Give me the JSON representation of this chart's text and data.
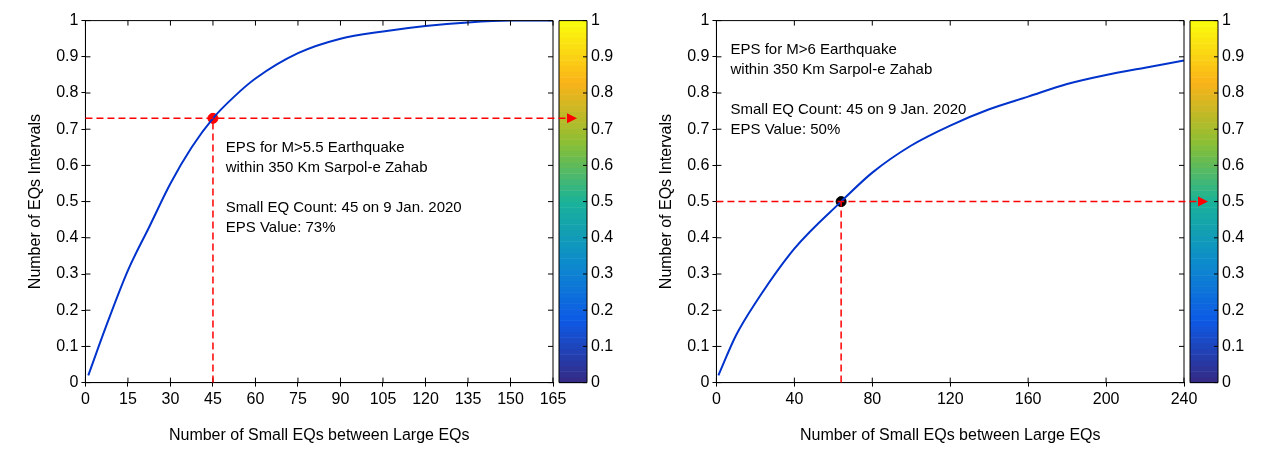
{
  "chart_data": [
    {
      "type": "line",
      "xlabel": "Number of Small EQs between Large EQs",
      "ylabel": "Number of EQs Intervals",
      "xlim": [
        0,
        165
      ],
      "xticks": [
        0,
        15,
        30,
        45,
        60,
        75,
        90,
        105,
        120,
        135,
        150,
        165
      ],
      "ylim": [
        0,
        1
      ],
      "yticks": [
        0,
        0.1,
        0.2,
        0.3,
        0.4,
        0.5,
        0.6,
        0.7,
        0.8,
        0.9,
        1
      ],
      "grid": false,
      "legend": false,
      "clim": [
        0,
        1
      ],
      "cticks": [
        0,
        0.1,
        0.2,
        0.3,
        0.4,
        0.5,
        0.6,
        0.7,
        0.8,
        0.9,
        1
      ],
      "series": [
        {
          "color": "#0033cc",
          "marker": "none",
          "x": [
            1,
            7.5,
            15,
            22.5,
            30,
            37.5,
            45,
            52.5,
            60,
            75,
            90,
            105,
            120,
            135,
            150,
            165
          ],
          "values": [
            0.02,
            0.16,
            0.31,
            0.43,
            0.55,
            0.65,
            0.73,
            0.79,
            0.84,
            0.91,
            0.95,
            0.97,
            0.985,
            0.995,
            1,
            1
          ]
        },
        {
          "type": "scatter",
          "color": "#ff0000",
          "marker": "circle",
          "x": [
            45
          ],
          "values": [
            0.73
          ]
        }
      ],
      "ref_lines": [
        {
          "axis": "y",
          "value": 0.73,
          "color": "#ff0000",
          "line_style": "dashed"
        },
        {
          "axis": "x",
          "value": 45,
          "color": "#ff0000",
          "line_style": "dashed"
        }
      ],
      "annotations": [
        "EPS for M>5.5 Earthquake",
        "within 350 Km Sarpol-e Zahab",
        "Small EQ Count: 45 on 9 Jan. 2020",
        "EPS Value: 73%"
      ]
    },
    {
      "type": "line",
      "xlabel": "Number of Small EQs between Large EQs",
      "ylabel": "Number of EQs Intervals",
      "xlim": [
        0,
        240
      ],
      "xticks": [
        0,
        40,
        80,
        120,
        160,
        200,
        240
      ],
      "ylim": [
        0,
        1
      ],
      "yticks": [
        0,
        0.1,
        0.2,
        0.3,
        0.4,
        0.5,
        0.6,
        0.7,
        0.8,
        0.9,
        1
      ],
      "grid": false,
      "legend": false,
      "clim": [
        0,
        1
      ],
      "cticks": [
        0,
        0.1,
        0.2,
        0.3,
        0.4,
        0.5,
        0.6,
        0.7,
        0.8,
        0.9,
        1
      ],
      "series": [
        {
          "color": "#0033cc",
          "marker": "none",
          "x": [
            1,
            10,
            20,
            40,
            64,
            80,
            100,
            120,
            140,
            160,
            180,
            200,
            220,
            240
          ],
          "values": [
            0.02,
            0.13,
            0.22,
            0.37,
            0.5,
            0.58,
            0.655,
            0.71,
            0.755,
            0.79,
            0.825,
            0.85,
            0.87,
            0.89
          ]
        },
        {
          "type": "scatter",
          "color": "#000000",
          "marker": "circle",
          "x": [
            64
          ],
          "values": [
            0.5
          ]
        }
      ],
      "ref_lines": [
        {
          "axis": "y",
          "value": 0.5,
          "color": "#ff0000",
          "line_style": "dashed"
        },
        {
          "axis": "x",
          "value": 64,
          "color": "#ff0000",
          "line_style": "dashed"
        }
      ],
      "annotations": [
        "EPS for M>6 Earthquake",
        "within 350 Km Sarpol-e Zahab",
        "Small EQ Count: 45 on 9 Jan. 2020",
        "EPS Value: 50%"
      ]
    }
  ]
}
